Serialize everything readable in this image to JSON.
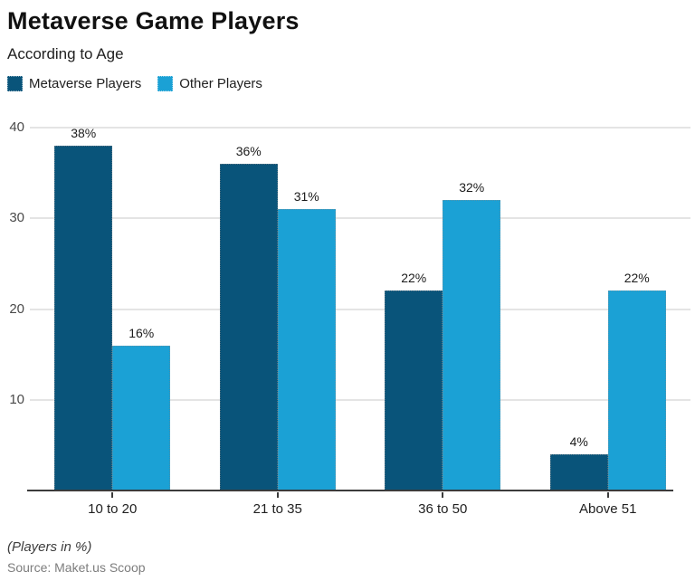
{
  "chart_data": {
    "type": "bar",
    "title": "Metaverse Game Players",
    "subtitle": "According to Age",
    "categories": [
      "10 to 20",
      "21 to 35",
      "36 to 50",
      "Above 51"
    ],
    "series": [
      {
        "name": "Metaverse Players",
        "color": "#09547a",
        "values": [
          38,
          36,
          22,
          4
        ]
      },
      {
        "name": "Other Players",
        "color": "#1ba1d5",
        "values": [
          16,
          31,
          32,
          22
        ]
      }
    ],
    "y_ticks": [
      10,
      20,
      30,
      40
    ],
    "ylim": [
      0,
      40
    ],
    "value_suffix": "%",
    "grid": true,
    "legend_position": "top-left",
    "footnote": "(Players in %)",
    "source": "Source: Maket.us Scoop"
  }
}
